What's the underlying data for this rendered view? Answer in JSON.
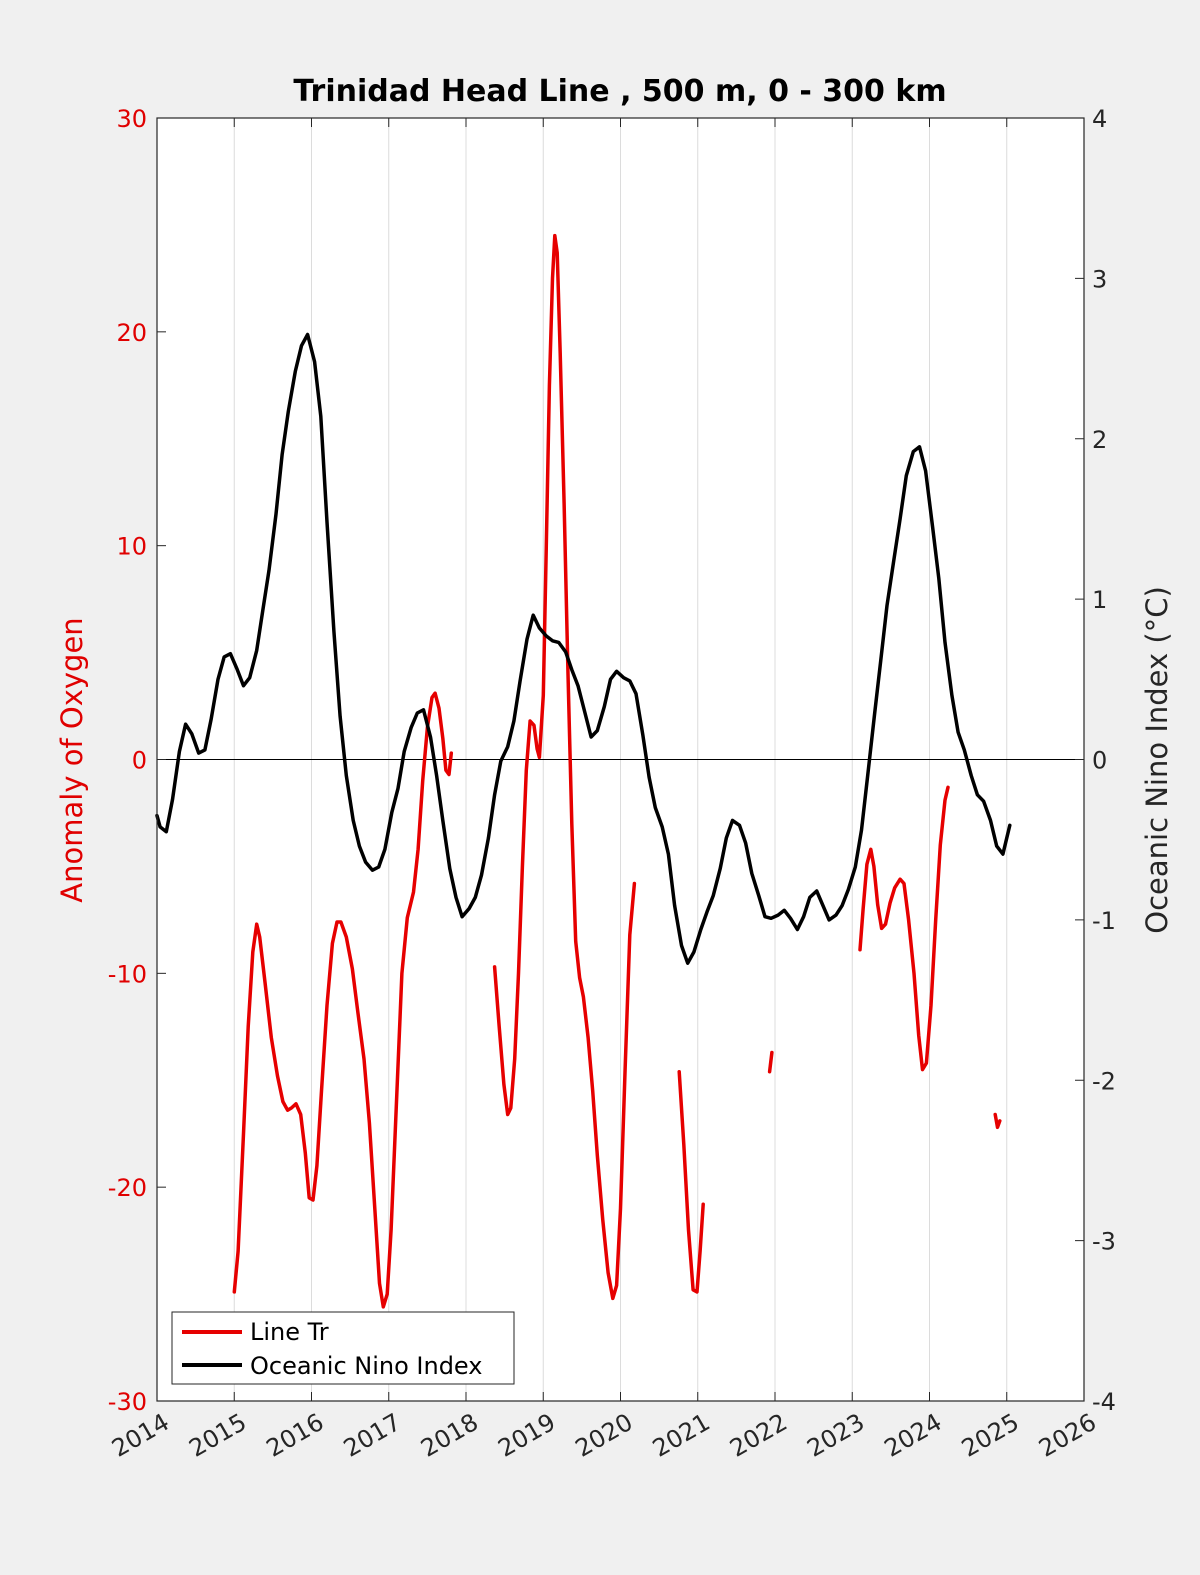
{
  "colors": {
    "background": "#f0f0f0",
    "plot_background": "#ffffff",
    "oxygen_series": "#e60000",
    "oni_series": "#000000",
    "left_axis": "#e00000",
    "right_axis": "#262626",
    "grid": "#dcdcdc"
  },
  "chart_data": {
    "type": "line",
    "title": "Trinidad Head Line , 500 m, 0 - 300 km",
    "xlabel": "",
    "ylabel_left": "Anomaly of Oxygen",
    "ylabel_right": "Oceanic Nino Index (°C)",
    "xlim": [
      2014,
      2026
    ],
    "ylim_left": [
      -30,
      30
    ],
    "ylim_right": [
      -4,
      4
    ],
    "x_ticks": [
      2014,
      2015,
      2016,
      2017,
      2018,
      2019,
      2020,
      2021,
      2022,
      2023,
      2024,
      2025,
      2026
    ],
    "x_tick_labels": [
      "2014",
      "2015",
      "2016",
      "2017",
      "2018",
      "2019",
      "2020",
      "2021",
      "2022",
      "2023",
      "2024",
      "2025",
      "2026"
    ],
    "y_left_ticks": [
      30,
      20,
      10,
      0,
      -10,
      -20,
      -30
    ],
    "y_left_tick_labels": [
      "30",
      "20",
      "10",
      "0",
      "-10",
      "-20",
      "-30"
    ],
    "y_right_ticks": [
      4,
      3,
      2,
      1,
      0,
      -1,
      -2,
      -3,
      -4
    ],
    "y_right_tick_labels": [
      "4",
      "3",
      "2",
      "1",
      "0",
      "-1",
      "-2",
      "-3",
      "-4"
    ],
    "x_grid": true,
    "zero_line": true,
    "legend_position": "bottom-left",
    "series": [
      {
        "name": "Line Tr",
        "axis": "left",
        "segments": [
          [
            [
              2015.0,
              -24.9
            ],
            [
              2015.05,
              -23.0
            ],
            [
              2015.12,
              -17.5
            ],
            [
              2015.18,
              -12.5
            ],
            [
              2015.24,
              -9.0
            ],
            [
              2015.29,
              -7.7
            ],
            [
              2015.33,
              -8.3
            ],
            [
              2015.4,
              -10.5
            ],
            [
              2015.48,
              -13.0
            ],
            [
              2015.56,
              -14.8
            ],
            [
              2015.63,
              -16.0
            ],
            [
              2015.69,
              -16.4
            ],
            [
              2015.74,
              -16.3
            ],
            [
              2015.8,
              -16.1
            ],
            [
              2015.86,
              -16.6
            ],
            [
              2015.92,
              -18.4
            ],
            [
              2015.97,
              -20.5
            ],
            [
              2016.02,
              -20.6
            ],
            [
              2016.07,
              -19.0
            ],
            [
              2016.13,
              -15.5
            ],
            [
              2016.2,
              -11.5
            ],
            [
              2016.27,
              -8.6
            ],
            [
              2016.33,
              -7.6
            ],
            [
              2016.38,
              -7.6
            ],
            [
              2016.45,
              -8.3
            ],
            [
              2016.53,
              -9.8
            ],
            [
              2016.6,
              -11.8
            ],
            [
              2016.68,
              -14.0
            ],
            [
              2016.75,
              -17.0
            ],
            [
              2016.82,
              -21.0
            ],
            [
              2016.88,
              -24.5
            ],
            [
              2016.93,
              -25.6
            ],
            [
              2016.98,
              -25.0
            ],
            [
              2017.03,
              -22.0
            ],
            [
              2017.1,
              -16.0
            ],
            [
              2017.17,
              -10.0
            ],
            [
              2017.24,
              -7.4
            ],
            [
              2017.32,
              -6.2
            ],
            [
              2017.38,
              -4.2
            ],
            [
              2017.44,
              -1.0
            ],
            [
              2017.5,
              1.5
            ],
            [
              2017.56,
              2.9
            ],
            [
              2017.6,
              3.1
            ],
            [
              2017.65,
              2.4
            ],
            [
              2017.7,
              1.0
            ],
            [
              2017.74,
              -0.5
            ],
            [
              2017.78,
              -0.7
            ],
            [
              2017.81,
              0.3
            ]
          ],
          [
            [
              2018.37,
              -9.7
            ],
            [
              2018.43,
              -12.5
            ],
            [
              2018.49,
              -15.2
            ],
            [
              2018.54,
              -16.6
            ],
            [
              2018.58,
              -16.3
            ],
            [
              2018.63,
              -14.0
            ],
            [
              2018.68,
              -10.0
            ],
            [
              2018.73,
              -5.0
            ],
            [
              2018.78,
              -0.5
            ],
            [
              2018.83,
              1.8
            ],
            [
              2018.88,
              1.6
            ],
            [
              2018.92,
              0.5
            ],
            [
              2018.95,
              0.1
            ],
            [
              2019.0,
              3.0
            ],
            [
              2019.04,
              10.0
            ],
            [
              2019.08,
              17.5
            ],
            [
              2019.12,
              22.5
            ],
            [
              2019.15,
              24.5
            ],
            [
              2019.18,
              23.7
            ],
            [
              2019.22,
              19.0
            ],
            [
              2019.27,
              12.0
            ],
            [
              2019.32,
              4.0
            ],
            [
              2019.37,
              -3.0
            ],
            [
              2019.42,
              -8.5
            ],
            [
              2019.47,
              -10.2
            ],
            [
              2019.52,
              -11.1
            ],
            [
              2019.58,
              -13.0
            ],
            [
              2019.64,
              -15.5
            ],
            [
              2019.7,
              -18.5
            ],
            [
              2019.77,
              -21.5
            ],
            [
              2019.84,
              -24.0
            ],
            [
              2019.9,
              -25.2
            ],
            [
              2019.95,
              -24.6
            ],
            [
              2020.0,
              -21.0
            ],
            [
              2020.06,
              -14.5
            ],
            [
              2020.12,
              -8.2
            ],
            [
              2020.18,
              -5.8
            ]
          ],
          [
            [
              2020.76,
              -14.6
            ],
            [
              2020.82,
              -18.0
            ],
            [
              2020.88,
              -22.0
            ],
            [
              2020.94,
              -24.8
            ],
            [
              2020.99,
              -24.9
            ],
            [
              2021.03,
              -23.0
            ],
            [
              2021.07,
              -20.8
            ]
          ],
          [
            [
              2021.93,
              -14.6
            ],
            [
              2021.96,
              -13.7
            ]
          ],
          [
            [
              2023.1,
              -8.9
            ],
            [
              2023.14,
              -7.0
            ],
            [
              2023.19,
              -4.9
            ],
            [
              2023.24,
              -4.2
            ],
            [
              2023.28,
              -5.0
            ],
            [
              2023.33,
              -6.8
            ],
            [
              2023.38,
              -7.9
            ],
            [
              2023.43,
              -7.7
            ],
            [
              2023.49,
              -6.7
            ],
            [
              2023.55,
              -6.0
            ],
            [
              2023.62,
              -5.6
            ],
            [
              2023.67,
              -5.8
            ],
            [
              2023.73,
              -7.5
            ],
            [
              2023.8,
              -10.0
            ],
            [
              2023.86,
              -12.9
            ],
            [
              2023.91,
              -14.5
            ],
            [
              2023.96,
              -14.2
            ],
            [
              2024.02,
              -11.5
            ],
            [
              2024.08,
              -7.5
            ],
            [
              2024.14,
              -4.0
            ],
            [
              2024.2,
              -1.9
            ],
            [
              2024.24,
              -1.3
            ]
          ],
          [
            [
              2024.85,
              -16.6
            ],
            [
              2024.88,
              -17.2
            ],
            [
              2024.91,
              -16.9
            ]
          ]
        ]
      },
      {
        "name": "Oceanic Nino Index",
        "axis": "right",
        "segments": [
          [
            [
              2014.0,
              -0.35
            ],
            [
              2014.04,
              -0.42
            ],
            [
              2014.12,
              -0.45
            ],
            [
              2014.2,
              -0.25
            ],
            [
              2014.29,
              0.05
            ],
            [
              2014.37,
              0.22
            ],
            [
              2014.45,
              0.16
            ],
            [
              2014.54,
              0.04
            ],
            [
              2014.62,
              0.06
            ],
            [
              2014.7,
              0.25
            ],
            [
              2014.79,
              0.5
            ],
            [
              2014.87,
              0.64
            ],
            [
              2014.95,
              0.66
            ],
            [
              2015.04,
              0.56
            ],
            [
              2015.12,
              0.46
            ],
            [
              2015.2,
              0.51
            ],
            [
              2015.29,
              0.68
            ],
            [
              2015.37,
              0.93
            ],
            [
              2015.45,
              1.18
            ],
            [
              2015.54,
              1.53
            ],
            [
              2015.62,
              1.9
            ],
            [
              2015.7,
              2.17
            ],
            [
              2015.79,
              2.42
            ],
            [
              2015.87,
              2.58
            ],
            [
              2015.95,
              2.65
            ],
            [
              2016.04,
              2.48
            ],
            [
              2016.12,
              2.14
            ],
            [
              2016.2,
              1.48
            ],
            [
              2016.29,
              0.8
            ],
            [
              2016.37,
              0.27
            ],
            [
              2016.45,
              -0.1
            ],
            [
              2016.54,
              -0.38
            ],
            [
              2016.62,
              -0.54
            ],
            [
              2016.7,
              -0.64
            ],
            [
              2016.79,
              -0.69
            ],
            [
              2016.87,
              -0.67
            ],
            [
              2016.95,
              -0.56
            ],
            [
              2017.04,
              -0.33
            ],
            [
              2017.12,
              -0.18
            ],
            [
              2017.2,
              0.05
            ],
            [
              2017.29,
              0.2
            ],
            [
              2017.37,
              0.29
            ],
            [
              2017.45,
              0.31
            ],
            [
              2017.54,
              0.14
            ],
            [
              2017.62,
              -0.1
            ],
            [
              2017.7,
              -0.38
            ],
            [
              2017.79,
              -0.68
            ],
            [
              2017.87,
              -0.86
            ],
            [
              2017.95,
              -0.98
            ],
            [
              2018.04,
              -0.93
            ],
            [
              2018.12,
              -0.86
            ],
            [
              2018.2,
              -0.72
            ],
            [
              2018.29,
              -0.49
            ],
            [
              2018.37,
              -0.22
            ],
            [
              2018.45,
              -0.01
            ],
            [
              2018.54,
              0.08
            ],
            [
              2018.62,
              0.24
            ],
            [
              2018.7,
              0.49
            ],
            [
              2018.79,
              0.75
            ],
            [
              2018.87,
              0.9
            ],
            [
              2018.95,
              0.82
            ],
            [
              2019.04,
              0.77
            ],
            [
              2019.12,
              0.74
            ],
            [
              2019.2,
              0.73
            ],
            [
              2019.29,
              0.67
            ],
            [
              2019.37,
              0.56
            ],
            [
              2019.45,
              0.46
            ],
            [
              2019.54,
              0.29
            ],
            [
              2019.62,
              0.14
            ],
            [
              2019.7,
              0.18
            ],
            [
              2019.79,
              0.33
            ],
            [
              2019.87,
              0.5
            ],
            [
              2019.95,
              0.55
            ],
            [
              2020.04,
              0.51
            ],
            [
              2020.12,
              0.49
            ],
            [
              2020.2,
              0.41
            ],
            [
              2020.29,
              0.15
            ],
            [
              2020.37,
              -0.11
            ],
            [
              2020.45,
              -0.3
            ],
            [
              2020.54,
              -0.42
            ],
            [
              2020.62,
              -0.59
            ],
            [
              2020.7,
              -0.91
            ],
            [
              2020.79,
              -1.16
            ],
            [
              2020.87,
              -1.27
            ],
            [
              2020.95,
              -1.2
            ],
            [
              2021.04,
              -1.06
            ],
            [
              2021.12,
              -0.95
            ],
            [
              2021.2,
              -0.85
            ],
            [
              2021.29,
              -0.68
            ],
            [
              2021.37,
              -0.49
            ],
            [
              2021.45,
              -0.38
            ],
            [
              2021.54,
              -0.41
            ],
            [
              2021.62,
              -0.52
            ],
            [
              2021.7,
              -0.71
            ],
            [
              2021.79,
              -0.85
            ],
            [
              2021.87,
              -0.98
            ],
            [
              2021.95,
              -0.99
            ],
            [
              2022.04,
              -0.97
            ],
            [
              2022.12,
              -0.94
            ],
            [
              2022.2,
              -0.99
            ],
            [
              2022.29,
              -1.06
            ],
            [
              2022.37,
              -0.98
            ],
            [
              2022.45,
              -0.86
            ],
            [
              2022.54,
              -0.82
            ],
            [
              2022.62,
              -0.91
            ],
            [
              2022.7,
              -1.0
            ],
            [
              2022.79,
              -0.97
            ],
            [
              2022.87,
              -0.91
            ],
            [
              2022.95,
              -0.81
            ],
            [
              2023.04,
              -0.67
            ],
            [
              2023.12,
              -0.44
            ],
            [
              2023.2,
              -0.1
            ],
            [
              2023.29,
              0.29
            ],
            [
              2023.37,
              0.62
            ],
            [
              2023.45,
              0.96
            ],
            [
              2023.54,
              1.25
            ],
            [
              2023.62,
              1.5
            ],
            [
              2023.7,
              1.77
            ],
            [
              2023.79,
              1.92
            ],
            [
              2023.87,
              1.95
            ],
            [
              2023.95,
              1.8
            ],
            [
              2024.04,
              1.45
            ],
            [
              2024.12,
              1.13
            ],
            [
              2024.2,
              0.73
            ],
            [
              2024.29,
              0.4
            ],
            [
              2024.37,
              0.17
            ],
            [
              2024.45,
              0.06
            ],
            [
              2024.54,
              -0.1
            ],
            [
              2024.62,
              -0.22
            ],
            [
              2024.7,
              -0.26
            ],
            [
              2024.79,
              -0.38
            ],
            [
              2024.87,
              -0.54
            ],
            [
              2024.95,
              -0.59
            ],
            [
              2025.04,
              -0.41
            ]
          ]
        ]
      }
    ]
  }
}
